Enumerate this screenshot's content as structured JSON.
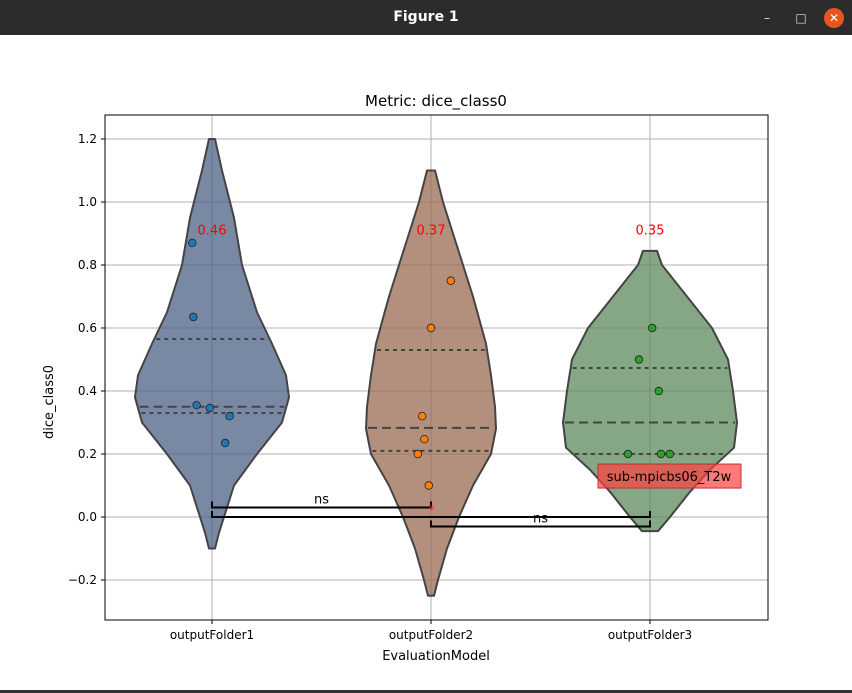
{
  "window": {
    "title": "Figure 1",
    "minimize": "–",
    "maximize": "□",
    "close": "✕"
  },
  "chart_data": {
    "type": "violin",
    "title": "Metric:  dice_class0",
    "xlabel": "EvaluationModel",
    "ylabel": "dice_class0",
    "ylim": [
      -0.32,
      1.28
    ],
    "yticks": [
      -0.2,
      0.0,
      0.2,
      0.4,
      0.6,
      0.8,
      1.0,
      1.2
    ],
    "ytick_labels": [
      "−0.2",
      "0.0",
      "0.2",
      "0.4",
      "0.6",
      "0.8",
      "1.0",
      "1.2"
    ],
    "grid": true,
    "categories": [
      "outputFolder1",
      "outputFolder2",
      "outputFolder3"
    ],
    "series": [
      {
        "name": "outputFolder1",
        "color": "#4c6185",
        "point_color": "#1f77b4",
        "mean_label": "0.46",
        "range": [
          -0.1,
          1.2
        ],
        "quartiles": [
          0.33,
          0.35,
          0.565
        ],
        "points": [
          [
            -0.09,
            0.87
          ],
          [
            -0.085,
            0.635
          ],
          [
            -0.07,
            0.355
          ],
          [
            -0.01,
            0.346
          ],
          [
            0.08,
            0.32
          ],
          [
            0.06,
            0.235
          ]
        ]
      },
      {
        "name": "outputFolder2",
        "color": "#9a6a52",
        "point_color": "#ff7f0e",
        "mean_label": "0.37",
        "range": [
          -0.25,
          1.1
        ],
        "quartiles": [
          0.21,
          0.283,
          0.53
        ],
        "points": [
          [
            0.09,
            0.75
          ],
          [
            0,
            0.6
          ],
          [
            -0.04,
            0.32
          ],
          [
            -0.03,
            0.247
          ],
          [
            -0.06,
            0.2
          ],
          [
            -0.01,
            0.1
          ]
        ]
      },
      {
        "name": "outputFolder3",
        "color": "#5e8a5e",
        "point_color": "#2ca02c",
        "mean_label": "0.35",
        "range": [
          -0.045,
          0.845
        ],
        "quartiles": [
          0.2,
          0.3,
          0.473
        ],
        "points": [
          [
            0.01,
            0.6
          ],
          [
            -0.05,
            0.5
          ],
          [
            0.04,
            0.4
          ],
          [
            -0.1,
            0.2
          ],
          [
            0.05,
            0.2
          ],
          [
            0.09,
            0.2
          ]
        ]
      }
    ],
    "significance": [
      {
        "from": 0,
        "to": 1,
        "y": 0.03,
        "label": "ns"
      },
      {
        "from": 0,
        "to": 2,
        "y": 0.0,
        "label": ""
      },
      {
        "from": 1,
        "to": 2,
        "y": -0.03,
        "label": "ns"
      }
    ],
    "annotation": {
      "text": "sub-mpicbs06_T2w",
      "category": 2,
      "value": 0.13
    }
  }
}
